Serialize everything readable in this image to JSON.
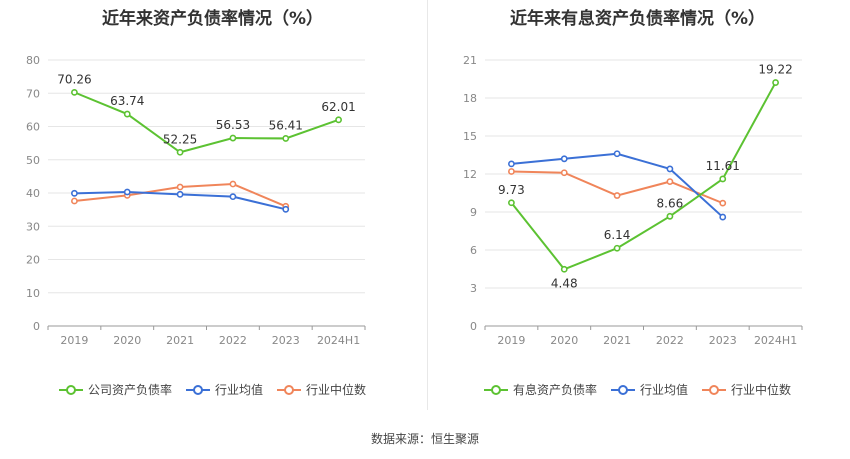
{
  "source_text": "数据来源：恒生聚源",
  "chart_data": [
    {
      "type": "line",
      "title": "近年来资产负债率情况（%）",
      "categories": [
        "2019",
        "2020",
        "2021",
        "2022",
        "2023",
        "2024H1"
      ],
      "ylim": [
        0,
        80
      ],
      "yticks": [
        0,
        10,
        20,
        30,
        40,
        50,
        60,
        70,
        80
      ],
      "grid": true,
      "legend_position": "bottom",
      "series": [
        {
          "name": "公司资产负债率",
          "color": "#5cc232",
          "values": [
            70.26,
            63.74,
            52.25,
            56.53,
            56.41,
            62.01
          ],
          "labels": [
            "70.26",
            "63.74",
            "52.25",
            "56.53",
            "56.41",
            "62.01"
          ]
        },
        {
          "name": "行业均值",
          "color": "#3b70d6",
          "values": [
            39.9,
            40.3,
            39.6,
            38.9,
            35.1,
            null
          ]
        },
        {
          "name": "行业中位数",
          "color": "#f0855a",
          "values": [
            37.6,
            39.3,
            41.8,
            42.7,
            36.0,
            null
          ]
        }
      ]
    },
    {
      "type": "line",
      "title": "近年来有息资产负债率情况（%）",
      "categories": [
        "2019",
        "2020",
        "2021",
        "2022",
        "2023",
        "2024H1"
      ],
      "ylim": [
        0,
        21
      ],
      "yticks": [
        0,
        3,
        6,
        9,
        12,
        15,
        18,
        21
      ],
      "grid": true,
      "legend_position": "bottom",
      "series": [
        {
          "name": "有息资产负债率",
          "color": "#5cc232",
          "values": [
            9.73,
            4.48,
            6.14,
            8.66,
            11.61,
            19.22
          ],
          "labels": [
            "9.73",
            "4.48",
            "6.14",
            "8.66",
            "11.61",
            "19.22"
          ]
        },
        {
          "name": "行业均值",
          "color": "#3b70d6",
          "values": [
            12.8,
            13.2,
            13.6,
            12.4,
            8.6,
            null
          ]
        },
        {
          "name": "行业中位数",
          "color": "#f0855a",
          "values": [
            12.2,
            12.1,
            10.3,
            11.4,
            9.7,
            null
          ]
        }
      ]
    }
  ]
}
